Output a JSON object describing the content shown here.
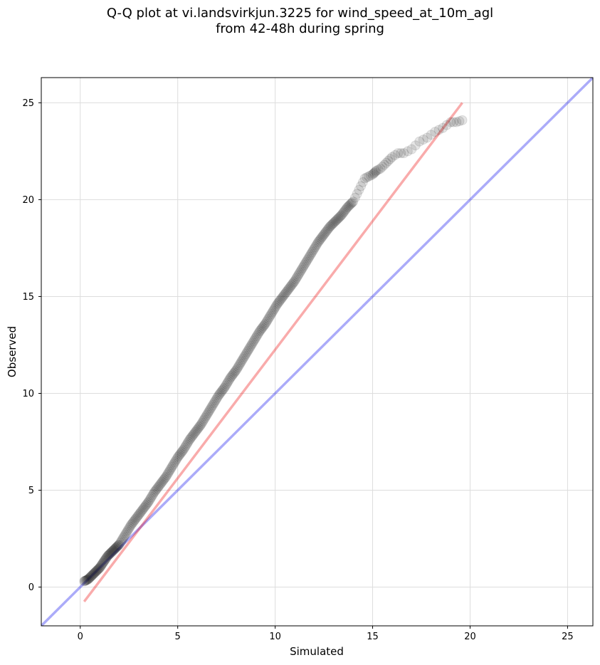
{
  "chart_data": {
    "type": "scatter",
    "title": "Q-Q plot at vi.landsvirkjun.3225 for wind_speed_at_10m_agl",
    "subtitle": "from 42-48h during spring",
    "xlabel": "Simulated",
    "ylabel": "Observed",
    "xlim": [
      -2.0,
      26.3
    ],
    "ylim": [
      -2.0,
      26.3
    ],
    "x_ticks": [
      0,
      5,
      10,
      15,
      20,
      25
    ],
    "y_ticks": [
      0,
      5,
      10,
      15,
      20,
      25
    ],
    "grid": true,
    "colors": {
      "points": "#000000",
      "identity_line": "#0000ee",
      "fit_line": "#ee0000",
      "grid": "#dddddd"
    },
    "reference_lines": [
      {
        "kind": "identity",
        "x": [
          -2.0,
          26.3
        ],
        "y": [
          -2.0,
          26.3
        ]
      },
      {
        "kind": "fit",
        "x": [
          0.2,
          19.6
        ],
        "y": [
          -0.75,
          25.0
        ]
      }
    ],
    "points": {
      "x": [
        0.2,
        0.4,
        0.6,
        0.8,
        1.0,
        1.2,
        1.4,
        1.6,
        1.8,
        2.0,
        2.3,
        2.6,
        2.9,
        3.2,
        3.5,
        3.8,
        4.1,
        4.4,
        4.7,
        5.0,
        5.3,
        5.6,
        5.9,
        6.2,
        6.5,
        6.8,
        7.1,
        7.4,
        7.7,
        8.0,
        8.3,
        8.6,
        8.9,
        9.2,
        9.5,
        9.8,
        10.1,
        10.4,
        10.7,
        11.0,
        11.3,
        11.6,
        11.9,
        12.2,
        12.5,
        12.8,
        13.1,
        13.4,
        13.7,
        14.0,
        14.2,
        14.4,
        14.6,
        14.8,
        15.0,
        15.1,
        15.2,
        15.4,
        15.6,
        15.8,
        16.0,
        16.3,
        16.6,
        17.0,
        17.4,
        17.8,
        18.2,
        18.6,
        19.0,
        19.3,
        19.6
      ],
      "y": [
        0.3,
        0.4,
        0.6,
        0.8,
        1.0,
        1.3,
        1.6,
        1.8,
        2.0,
        2.2,
        2.7,
        3.2,
        3.6,
        4.0,
        4.4,
        4.9,
        5.3,
        5.7,
        6.2,
        6.7,
        7.1,
        7.6,
        8.0,
        8.4,
        8.9,
        9.4,
        9.9,
        10.3,
        10.8,
        11.2,
        11.7,
        12.2,
        12.7,
        13.2,
        13.6,
        14.1,
        14.6,
        15.0,
        15.4,
        15.8,
        16.3,
        16.8,
        17.3,
        17.8,
        18.2,
        18.6,
        18.9,
        19.2,
        19.6,
        19.9,
        20.3,
        20.7,
        21.1,
        21.2,
        21.3,
        21.4,
        21.5,
        21.6,
        21.8,
        22.0,
        22.2,
        22.4,
        22.4,
        22.6,
        23.0,
        23.2,
        23.5,
        23.7,
        24.0,
        24.0,
        24.1
      ]
    }
  }
}
